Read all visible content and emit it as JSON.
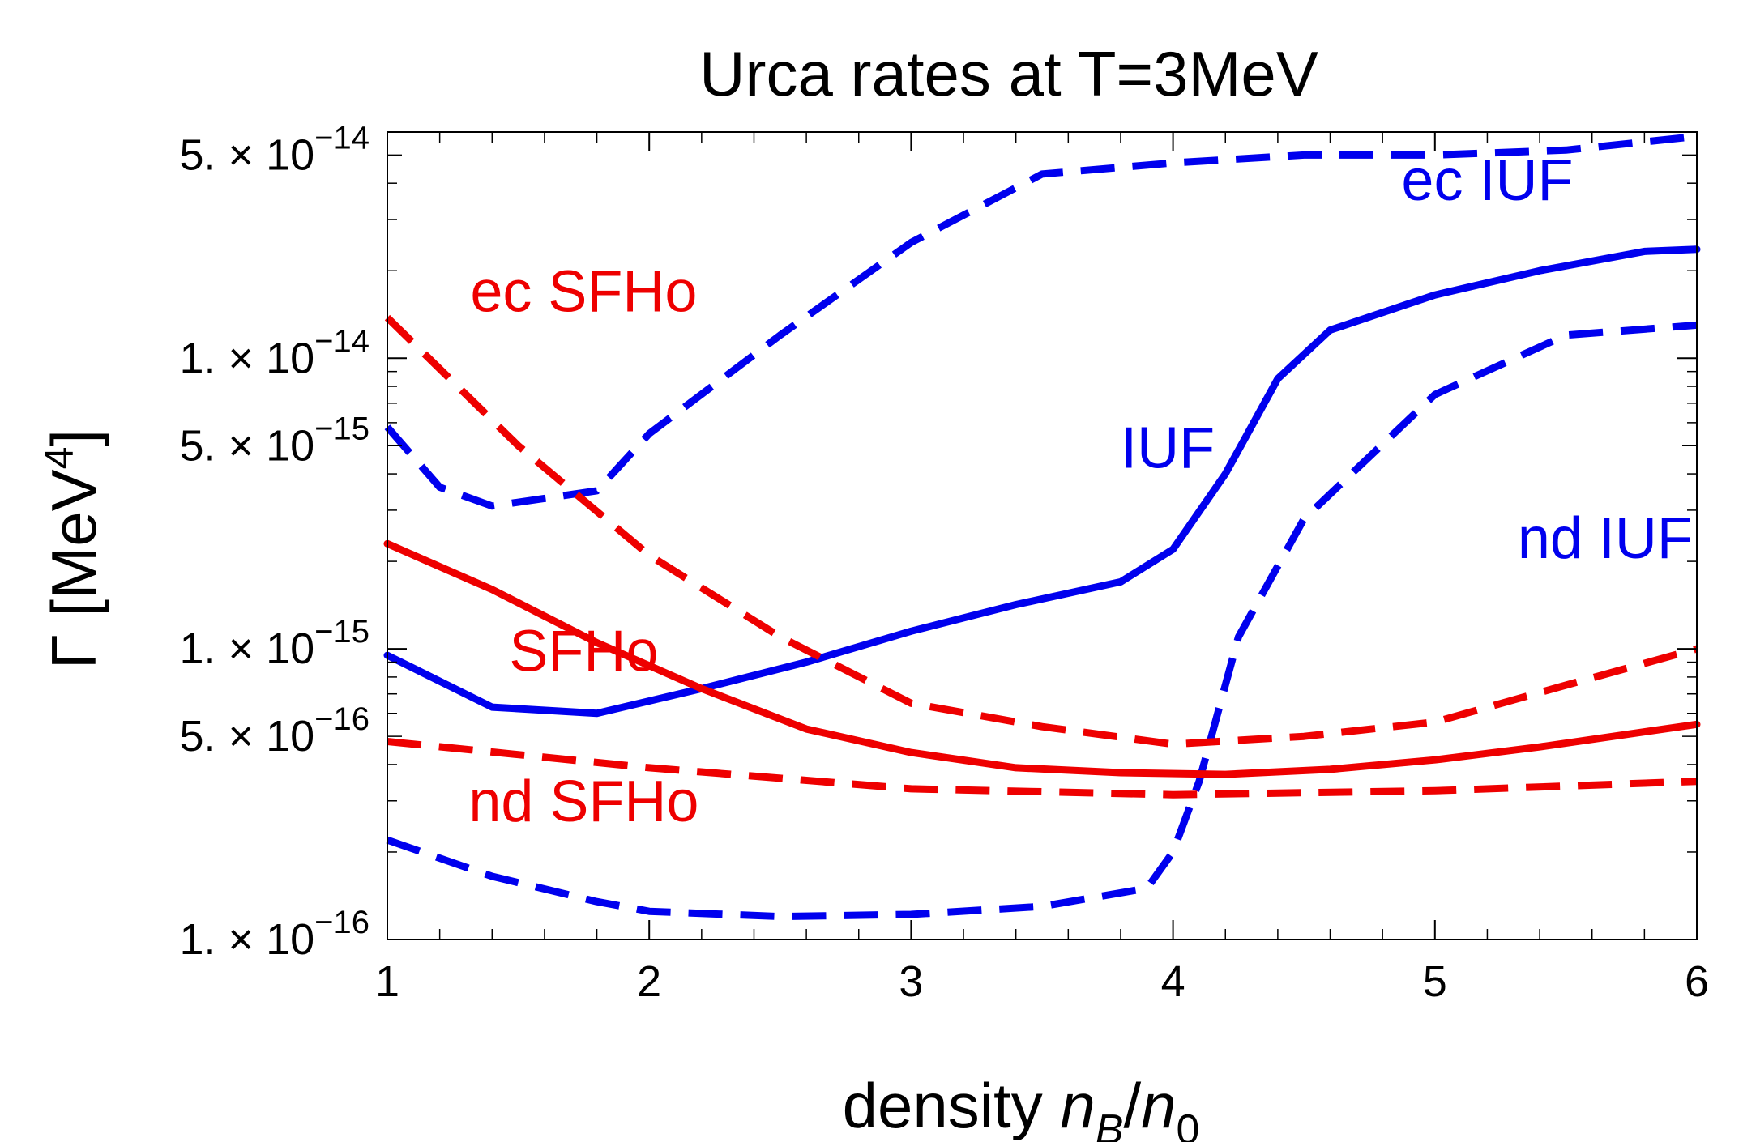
{
  "chart_data": {
    "type": "line",
    "title": "Urca rates at T=3MeV",
    "xlabel": {
      "main": "density ",
      "n": "n",
      "b_sub": "B",
      "slash": "/",
      "n0": "n",
      "zero_sub": "0"
    },
    "ylabel": {
      "main": "Γ [MeV",
      "exp": "4",
      "close": "]"
    },
    "xlim": [
      1,
      6
    ],
    "ylim": [
      1e-16,
      6e-14
    ],
    "yscale": "log",
    "grid": false,
    "xticks": [
      {
        "value": 1,
        "label": "1"
      },
      {
        "value": 2,
        "label": "2"
      },
      {
        "value": 3,
        "label": "3"
      },
      {
        "value": 4,
        "label": "4"
      },
      {
        "value": 5,
        "label": "5"
      },
      {
        "value": 6,
        "label": "6"
      }
    ],
    "yticks": [
      {
        "value": 1e-16,
        "mantissa": "1. × 10",
        "exp": "−16"
      },
      {
        "value": 5e-16,
        "mantissa": "5. × 10",
        "exp": "−16"
      },
      {
        "value": 1e-15,
        "mantissa": "1. × 10",
        "exp": "−15"
      },
      {
        "value": 5e-15,
        "mantissa": "5. × 10",
        "exp": "−15"
      },
      {
        "value": 1e-14,
        "mantissa": "1. × 10",
        "exp": "−14"
      },
      {
        "value": 5e-14,
        "mantissa": "5. × 10",
        "exp": "−14"
      }
    ],
    "series": [
      {
        "name": "ec IUF",
        "label": "ec IUF",
        "color": "#0000ee",
        "dashed": true,
        "x": [
          1,
          1.2,
          1.4,
          1.8,
          2,
          2.5,
          3,
          3.5,
          4,
          4.5,
          5,
          5.5,
          6
        ],
        "y": [
          5.8e-15,
          3.6e-15,
          3.1e-15,
          3.5e-15,
          5.5e-15,
          1.2e-14,
          2.5e-14,
          4.3e-14,
          4.7e-14,
          5e-14,
          5e-14,
          5.2e-14,
          5.8e-14
        ]
      },
      {
        "name": "IUF",
        "label": "IUF",
        "color": "#0000ee",
        "dashed": false,
        "x": [
          1,
          1.4,
          1.8,
          2.2,
          2.6,
          3,
          3.4,
          3.8,
          4,
          4.2,
          4.4,
          4.6,
          5,
          5.4,
          5.8,
          6
        ],
        "y": [
          9.5e-16,
          6.3e-16,
          6e-16,
          7.3e-16,
          9e-16,
          1.15e-15,
          1.42e-15,
          1.7e-15,
          2.2e-15,
          4e-15,
          8.5e-15,
          1.25e-14,
          1.65e-14,
          2e-14,
          2.33e-14,
          2.37e-14
        ]
      },
      {
        "name": "nd IUF",
        "label": "nd IUF",
        "color": "#0000ee",
        "dashed": true,
        "x": [
          1,
          1.4,
          1.8,
          2,
          2.5,
          3,
          3.5,
          3.9,
          4,
          4.1,
          4.25,
          4.5,
          5,
          5.5,
          6
        ],
        "y": [
          2.2e-16,
          1.65e-16,
          1.35e-16,
          1.25e-16,
          1.2e-16,
          1.22e-16,
          1.3e-16,
          1.5e-16,
          2e-16,
          3.5e-16,
          1.1e-15,
          2.8e-15,
          7.5e-15,
          1.2e-14,
          1.3e-14
        ]
      },
      {
        "name": "ec SFHo",
        "label": "ec SFHo",
        "color": "#ee0000",
        "dashed": true,
        "x": [
          1,
          1.5,
          2,
          2.5,
          3,
          3.5,
          4,
          4.5,
          5,
          5.5,
          6
        ],
        "y": [
          1.38e-14,
          5e-15,
          2.1e-15,
          1.1e-15,
          6.5e-16,
          5.4e-16,
          4.7e-16,
          5e-16,
          5.6e-16,
          7.5e-16,
          1e-15
        ]
      },
      {
        "name": "SFHo",
        "label": "SFHo",
        "color": "#ee0000",
        "dashed": false,
        "x": [
          1,
          1.4,
          1.8,
          2.2,
          2.6,
          3,
          3.4,
          3.8,
          4.2,
          4.6,
          5,
          5.4,
          6
        ],
        "y": [
          2.3e-15,
          1.6e-15,
          1.05e-15,
          7.3e-16,
          5.3e-16,
          4.4e-16,
          3.9e-16,
          3.75e-16,
          3.7e-16,
          3.85e-16,
          4.15e-16,
          4.6e-16,
          5.5e-16
        ]
      },
      {
        "name": "nd SFHo",
        "label": "nd SFHo",
        "color": "#ee0000",
        "dashed": true,
        "x": [
          1,
          2,
          3,
          4,
          5,
          6
        ],
        "y": [
          4.8e-16,
          3.9e-16,
          3.3e-16,
          3.15e-16,
          3.25e-16,
          3.5e-16
        ]
      }
    ],
    "label_positions": {
      "ec IUF": {
        "x": 5.2,
        "y": 3.5e-14
      },
      "IUF": {
        "x": 3.98,
        "y": 4.2e-15
      },
      "nd IUF": {
        "x": 5.65,
        "y": 2.05e-15
      },
      "ec SFHo": {
        "x": 1.75,
        "y": 1.45e-14
      },
      "SFHo": {
        "x": 1.75,
        "y": 8.4e-16
      },
      "nd SFHo": {
        "x": 1.75,
        "y": 2.55e-16
      }
    }
  }
}
